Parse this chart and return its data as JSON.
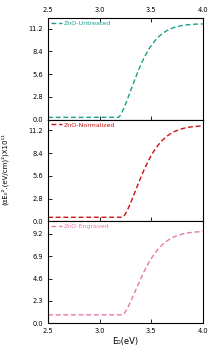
{
  "xlabel": "E₀(eV)",
  "ylabel": "(αE₀².(eV/cm)²)X10¹¹",
  "xlim": [
    2.5,
    4.0
  ],
  "xticks": [
    2.5,
    3.0,
    3.5,
    4.0
  ],
  "xtick_labels": [
    "2.5",
    "3.0",
    "3.5",
    "4.0"
  ],
  "panels": [
    {
      "label": "ZnO-Untreated",
      "color": "#1a9e8f",
      "ylim": [
        0,
        12.5
      ],
      "yticks": [
        0.0,
        2.8,
        5.6,
        8.4,
        11.2
      ],
      "ytick_labels": [
        "0.0",
        "2.8",
        "5.6",
        "8.4",
        "11.2"
      ],
      "onset": 3.18,
      "baseline": 0.28,
      "peak": 11.8,
      "sharpness": 8.0
    },
    {
      "label": "ZnO-Normalized",
      "color": "#cc1111",
      "ylim": [
        0,
        12.5
      ],
      "yticks": [
        0.0,
        2.8,
        5.6,
        8.4,
        11.2
      ],
      "ytick_labels": [
        "0.0",
        "2.8",
        "5.6",
        "8.4",
        "11.2"
      ],
      "onset": 3.22,
      "baseline": 0.5,
      "peak": 11.8,
      "sharpness": 7.5
    },
    {
      "label": "ZnO-Engraved",
      "color": "#e878b0",
      "ylim": [
        0,
        10.5
      ],
      "yticks": [
        0.0,
        2.3,
        4.6,
        6.9,
        9.2
      ],
      "ytick_labels": [
        "0.0",
        "2.3",
        "4.6",
        "6.9",
        "9.2"
      ],
      "onset": 3.22,
      "baseline": 0.85,
      "peak": 9.5,
      "sharpness": 7.5
    }
  ],
  "dpi": 100,
  "figsize": [
    2.09,
    3.59
  ]
}
